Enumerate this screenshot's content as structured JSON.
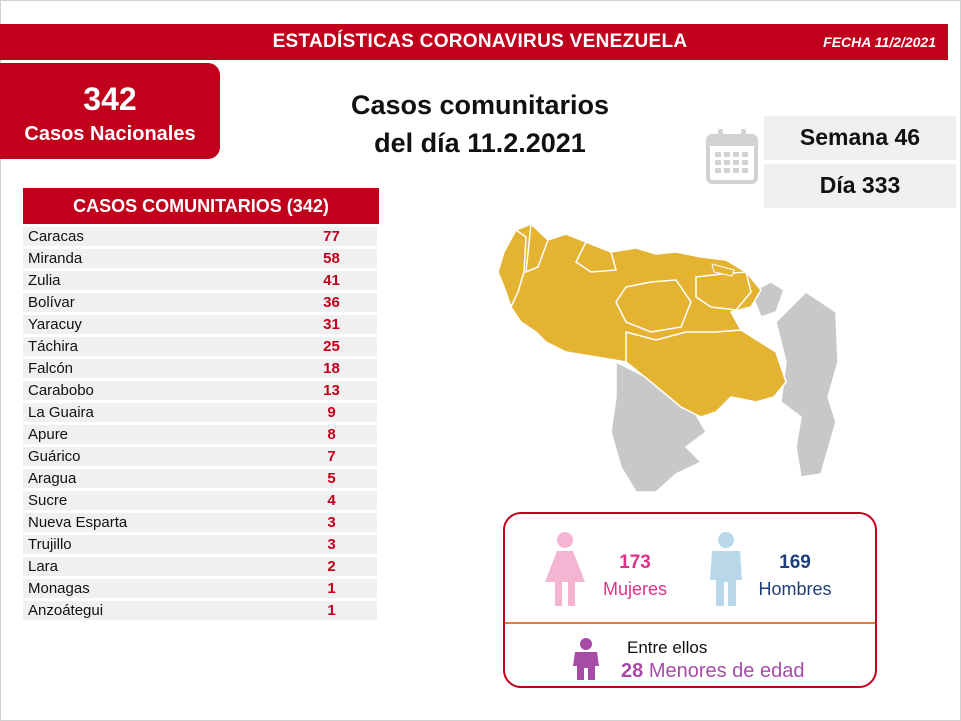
{
  "header": {
    "title": "ESTADÍSTICAS CORONAVIRUS VENEZUELA",
    "date": "FECHA 11/2/2021"
  },
  "national": {
    "count": "342",
    "label": "Casos Nacionales"
  },
  "main_title": {
    "line1": "Casos comunitarios",
    "line2": "del día 11.2.2021"
  },
  "calendar": {
    "icon": "calendar-icon",
    "week": "Semana 46",
    "day": "Día 333"
  },
  "table": {
    "header": "CASOS COMUNITARIOS (342)",
    "rows": [
      {
        "name": "Caracas",
        "value": "77"
      },
      {
        "name": "Miranda",
        "value": "58"
      },
      {
        "name": "Zulia",
        "value": "41"
      },
      {
        "name": "Bolívar",
        "value": "36"
      },
      {
        "name": "Yaracuy",
        "value": "31"
      },
      {
        "name": "Táchira",
        "value": "25"
      },
      {
        "name": "Falcón",
        "value": "18"
      },
      {
        "name": "Carabobo",
        "value": "13"
      },
      {
        "name": "La Guaira",
        "value": "9"
      },
      {
        "name": "Apure",
        "value": "8"
      },
      {
        "name": "Guárico",
        "value": "7"
      },
      {
        "name": "Aragua",
        "value": "5"
      },
      {
        "name": "Sucre",
        "value": "4"
      },
      {
        "name": "Nueva Esparta",
        "value": "3"
      },
      {
        "name": "Trujillo",
        "value": "3"
      },
      {
        "name": "Lara",
        "value": "2"
      },
      {
        "name": "Monagas",
        "value": "1"
      },
      {
        "name": "Anzoátegui",
        "value": "1"
      }
    ]
  },
  "map": {
    "icon": "venezuela-map-icon",
    "highlight_color": "#e3b331",
    "other_color": "#c8c8c8"
  },
  "gender": {
    "female": {
      "count": "173",
      "label": "Mujeres",
      "icon": "woman-icon",
      "color": "#e0318a"
    },
    "male": {
      "count": "169",
      "label": "Hombres",
      "icon": "man-icon",
      "color": "#1f3f7a"
    },
    "minors": {
      "intro": "Entre ellos",
      "count": "28",
      "label": "Menores de edad",
      "icon": "child-icon"
    }
  }
}
